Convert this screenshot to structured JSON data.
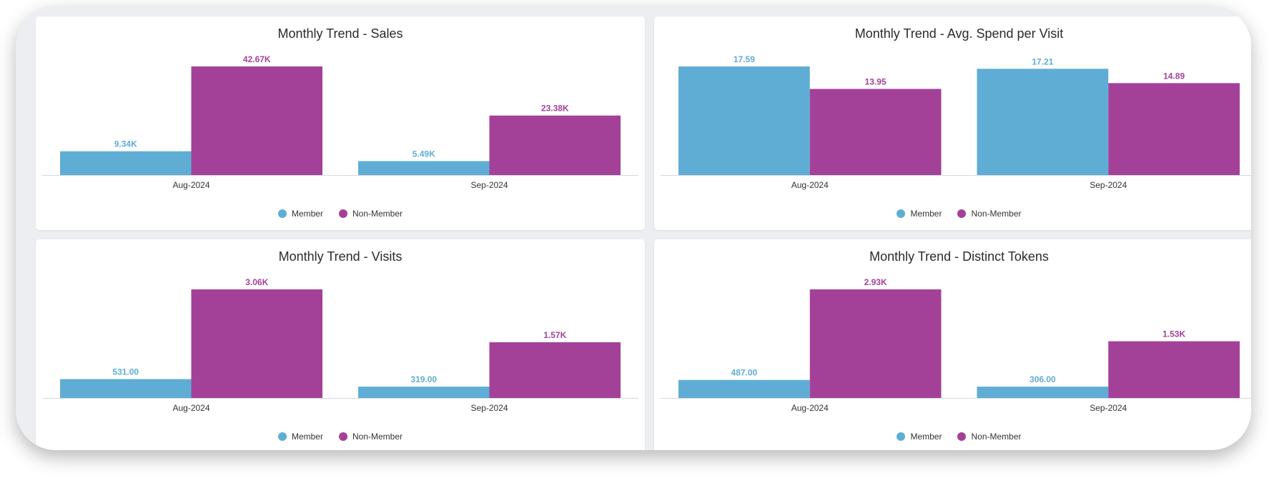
{
  "colors": {
    "member": "#5fadd4",
    "non_member": "#a34198"
  },
  "legend": {
    "member": "Member",
    "non_member": "Non-Member"
  },
  "chart_data": [
    {
      "type": "bar",
      "title": "Monthly Trend - Sales",
      "categories": [
        "Aug-2024",
        "Sep-2024"
      ],
      "series": [
        {
          "name": "Member",
          "values": [
            9340,
            5490
          ],
          "labels": [
            "9.34K",
            "5.49K"
          ]
        },
        {
          "name": "Non-Member",
          "values": [
            42670,
            23380
          ],
          "labels": [
            "42.67K",
            "23.38K"
          ]
        }
      ],
      "ylim": [
        0,
        42670
      ],
      "legend_position": "bottom"
    },
    {
      "type": "bar",
      "title": "Monthly Trend - Avg. Spend per Visit",
      "categories": [
        "Aug-2024",
        "Sep-2024"
      ],
      "series": [
        {
          "name": "Member",
          "values": [
            17.59,
            17.21
          ],
          "labels": [
            "17.59",
            "17.21"
          ]
        },
        {
          "name": "Non-Member",
          "values": [
            13.95,
            14.89
          ],
          "labels": [
            "13.95",
            "14.89"
          ]
        }
      ],
      "ylim": [
        0,
        17.59
      ],
      "legend_position": "bottom"
    },
    {
      "type": "bar",
      "title": "Monthly Trend - Visits",
      "categories": [
        "Aug-2024",
        "Sep-2024"
      ],
      "series": [
        {
          "name": "Member",
          "values": [
            531,
            319
          ],
          "labels": [
            "531.00",
            "319.00"
          ]
        },
        {
          "name": "Non-Member",
          "values": [
            3060,
            1570
          ],
          "labels": [
            "3.06K",
            "1.57K"
          ]
        }
      ],
      "ylim": [
        0,
        3060
      ],
      "legend_position": "bottom"
    },
    {
      "type": "bar",
      "title": "Monthly Trend - Distinct Tokens",
      "categories": [
        "Aug-2024",
        "Sep-2024"
      ],
      "series": [
        {
          "name": "Member",
          "values": [
            487,
            306
          ],
          "labels": [
            "487.00",
            "306.00"
          ]
        },
        {
          "name": "Non-Member",
          "values": [
            2930,
            1530
          ],
          "labels": [
            "2.93K",
            "1.53K"
          ]
        }
      ],
      "ylim": [
        0,
        2930
      ],
      "legend_position": "bottom"
    }
  ]
}
